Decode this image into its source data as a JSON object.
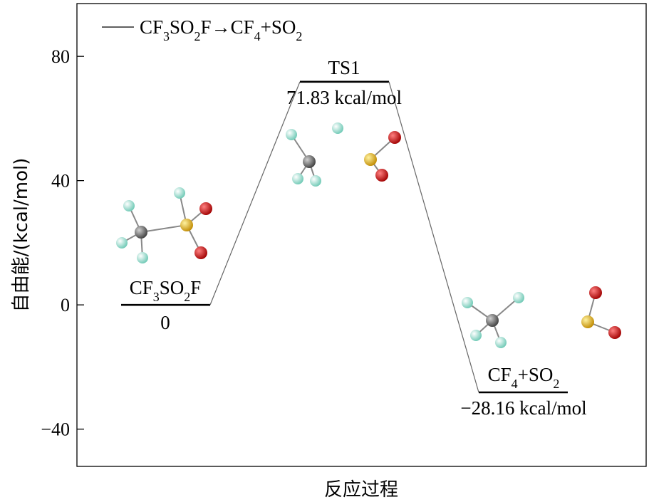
{
  "chart_data": {
    "type": "line",
    "title": "",
    "xlabel": "反应过程",
    "ylabel": "自由能/(kcal/mol)",
    "ylim": [
      -52,
      97
    ],
    "yticks": [
      -40,
      0,
      40,
      80
    ],
    "ytick_labels": [
      "−40",
      "0",
      "40",
      "80"
    ],
    "grid": false,
    "legend_position": "top-left",
    "series": [
      {
        "name": "CF3SO2F→CF4+SO2",
        "name_parts": {
          "a": "CF",
          "b": "3",
          "c": "SO",
          "d": "2",
          "e": "F→CF",
          "f": "4",
          "g": "+SO",
          "h": "2"
        },
        "stages": [
          "CF3SO2F",
          "TS1",
          "CF4+SO2"
        ],
        "values": [
          0,
          71.83,
          -28.16
        ]
      }
    ],
    "annotations": {
      "reactant": {
        "n1": "CF",
        "s1": "3",
        "n2": "SO",
        "s2": "2",
        "n3": "F",
        "energy": "0"
      },
      "ts": {
        "name": "TS1",
        "energy": "71.83 kcal/mol"
      },
      "product": {
        "n1": "CF",
        "s1": "4",
        "n2": "+SO",
        "s2": "2",
        "energy": "−28.16 kcal/mol"
      }
    },
    "atom_colors": {
      "F": "#8fe0d0",
      "C": "#7a7a7a",
      "S": "#e0b020",
      "O": "#d01010"
    }
  }
}
